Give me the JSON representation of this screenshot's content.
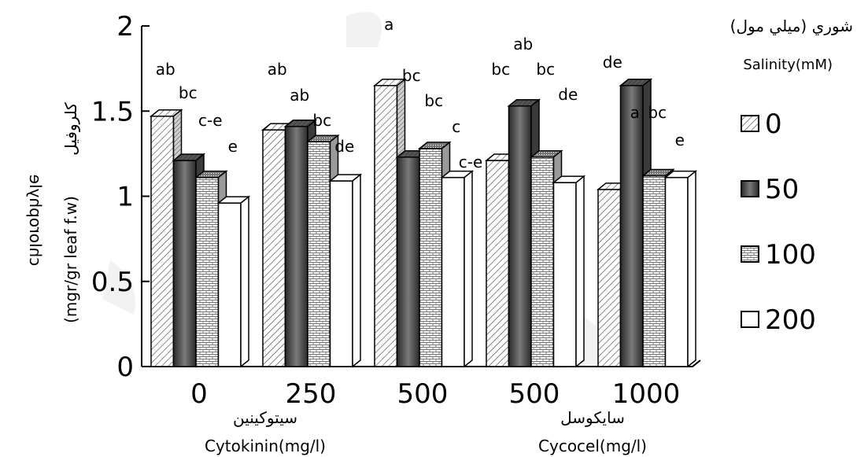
{
  "chart_data": {
    "type": "bar",
    "categories": [
      "0",
      "250",
      "500",
      "500",
      "1000"
    ],
    "group_labels": [
      {
        "arabic": "سيتوكينين",
        "english": "Cytokinin(mg/l)"
      },
      {
        "arabic": "سايكوسل",
        "english": "Cycocel(mg/l)"
      }
    ],
    "ylabel_arabic": "كلروفيل",
    "ylabel_english": "(mgr/gr leaf f.w)",
    "ylabel_mirrored": "chlorophyle",
    "ylim": [
      0,
      2
    ],
    "yticks": [
      "0",
      "0.5",
      "1",
      "1.5",
      "2"
    ],
    "legend_title_arabic": "شوري (ميلي مول)",
    "legend_title_english": "Salinity(mM)",
    "legend_placement": "right",
    "grid": false,
    "series": [
      {
        "name": "0",
        "pattern": "diagonal-hatch",
        "values": [
          1.47,
          1.39,
          1.65,
          1.21,
          1.04
        ],
        "letters": [
          "ab",
          "ab",
          "a",
          "bc",
          "de"
        ]
      },
      {
        "name": "50",
        "pattern": "dark-gradient",
        "values": [
          1.21,
          1.41,
          1.23,
          1.53,
          1.65
        ],
        "letters": [
          "bc",
          "ab",
          "bc",
          "ab",
          "a"
        ]
      },
      {
        "name": "100",
        "pattern": "brick-dots",
        "values": [
          1.11,
          1.32,
          1.28,
          1.23,
          1.12
        ],
        "letters": [
          "c-e",
          "bc",
          "bc",
          "bc",
          "bc"
        ]
      },
      {
        "name": "200",
        "pattern": "white",
        "values": [
          0.96,
          1.09,
          1.11,
          1.08,
          1.11
        ],
        "letters": [
          "e",
          "de",
          "c",
          "de",
          "e"
        ]
      }
    ],
    "extra_labels": [
      "c-e"
    ]
  }
}
